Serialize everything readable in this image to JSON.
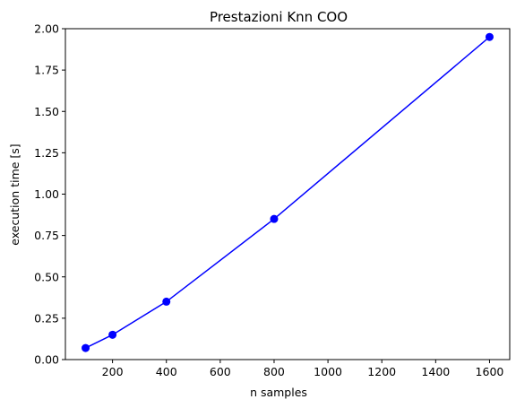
{
  "chart_data": {
    "type": "line",
    "title": "Prestazioni Knn COO",
    "xlabel": "n samples",
    "ylabel": "execution time [s]",
    "x": [
      100,
      200,
      400,
      800,
      1600
    ],
    "series": [
      {
        "values": [
          0.07,
          0.15,
          0.35,
          0.85,
          1.95
        ],
        "color": "#0000ff",
        "marker": "circle"
      }
    ],
    "xlim": [
      25,
      1675
    ],
    "ylim": [
      0,
      2.0
    ],
    "xticks": [
      200,
      400,
      600,
      800,
      1000,
      1200,
      1400,
      1600
    ],
    "yticks": [
      0.0,
      0.25,
      0.5,
      0.75,
      1.0,
      1.25,
      1.5,
      1.75,
      2.0
    ],
    "xtick_labels": [
      "200",
      "400",
      "600",
      "800",
      "1000",
      "1200",
      "1400",
      "1600"
    ],
    "ytick_labels": [
      "0.00",
      "0.25",
      "0.50",
      "0.75",
      "1.00",
      "1.25",
      "1.50",
      "1.75",
      "2.00"
    ],
    "grid": false,
    "legend": false
  }
}
